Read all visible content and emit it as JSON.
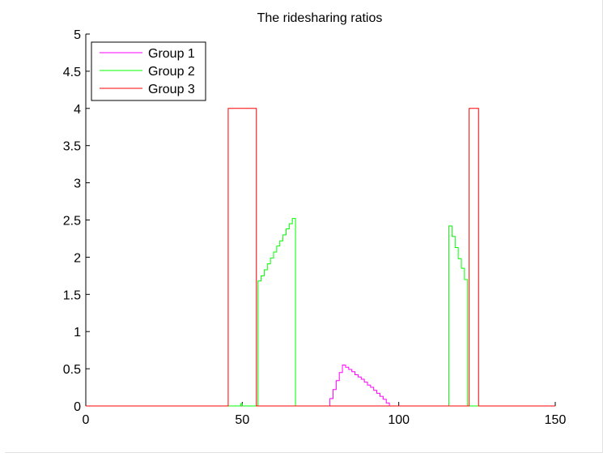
{
  "chart_data": {
    "type": "line",
    "title": "The ridesharing ratios",
    "xlabel": "",
    "ylabel": "",
    "xlim": [
      0,
      150
    ],
    "ylim": [
      0,
      5
    ],
    "x_ticks": [
      0,
      50,
      100,
      150
    ],
    "y_ticks": [
      0,
      0.5,
      1,
      1.5,
      2,
      2.5,
      3,
      3.5,
      4,
      4.5,
      5
    ],
    "grid": false,
    "legend_position": "top-left",
    "line_style": "stairs",
    "series": [
      {
        "name": "Group 1",
        "color": "#ff00ff",
        "x": [
          0,
          77,
          78,
          79,
          80,
          81,
          82,
          83,
          84,
          85,
          86,
          87,
          88,
          89,
          90,
          91,
          92,
          93,
          94,
          95,
          96,
          97,
          150
        ],
        "y": [
          0,
          0,
          0.1,
          0.22,
          0.34,
          0.45,
          0.55,
          0.52,
          0.49,
          0.46,
          0.42,
          0.39,
          0.36,
          0.32,
          0.28,
          0.25,
          0.21,
          0.17,
          0.13,
          0.09,
          0.04,
          0,
          0
        ]
      },
      {
        "name": "Group 2",
        "color": "#00ff00",
        "x": [
          0,
          49.5,
          50,
          55,
          56,
          57,
          58,
          59,
          60,
          61,
          62,
          63,
          64,
          65,
          66,
          67,
          116,
          117,
          118,
          119,
          120,
          121,
          122,
          150
        ],
        "y": [
          0,
          0.03,
          0,
          1.68,
          1.75,
          1.83,
          1.91,
          1.99,
          2.07,
          2.15,
          2.22,
          2.3,
          2.38,
          2.45,
          2.52,
          0,
          2.42,
          2.28,
          2.13,
          1.98,
          1.85,
          1.7,
          0,
          0
        ]
      },
      {
        "name": "Group 3",
        "color": "#ff0000",
        "x": [
          0,
          45.5,
          54.5,
          122.5,
          125.5,
          150
        ],
        "y": [
          0,
          4,
          0,
          4,
          0,
          0
        ]
      }
    ]
  }
}
